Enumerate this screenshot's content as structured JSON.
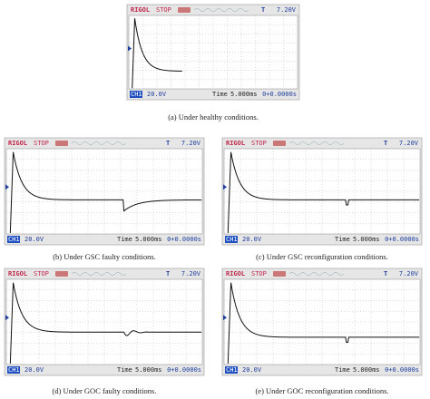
{
  "panels": [
    {
      "header": {
        "brand": "RIGOL",
        "status": "STOP",
        "trigger": "T",
        "level": "7.20V"
      },
      "footer": {
        "channel": "CH1",
        "scale": "20.0V",
        "time_label": "Time",
        "time_scale": "5.000ms",
        "offset": "0+0.0000s"
      },
      "caption": "(a) Under healthy conditions."
    },
    {
      "header": {
        "brand": "RIGOL",
        "status": "STOP",
        "trigger": "T",
        "level": "7.20V"
      },
      "footer": {
        "channel": "CH1",
        "scale": "20.0V",
        "time_label": "Time",
        "time_scale": "5.000ms",
        "offset": "0+0.0000s"
      },
      "caption": "(b) Under GSC faulty conditions."
    },
    {
      "header": {
        "brand": "RIGOL",
        "status": "STOP",
        "trigger": "T",
        "level": "7.20V"
      },
      "footer": {
        "channel": "CH1",
        "scale": "20.0V",
        "time_label": "Time",
        "time_scale": "5.000ms",
        "offset": "0+0.0000s"
      },
      "caption": "(c) Under GSC reconfiguration conditions."
    },
    {
      "header": {
        "brand": "RIGOL",
        "status": "STOP",
        "trigger": "T",
        "level": "7.20V"
      },
      "footer": {
        "channel": "CH1",
        "scale": "20.0V",
        "time_label": "Time",
        "time_scale": "5.000ms",
        "offset": "0+0.0000s"
      },
      "caption": "(d) Under GOC faulty conditions."
    },
    {
      "header": {
        "brand": "RIGOL",
        "status": "STOP",
        "trigger": "T",
        "level": "7.20V"
      },
      "footer": {
        "channel": "CH1",
        "scale": "20.0V",
        "time_label": "Time",
        "time_scale": "5.000ms",
        "offset": "0+0.0000s"
      },
      "caption": "(e) Under GOC reconfiguration conditions."
    }
  ]
}
